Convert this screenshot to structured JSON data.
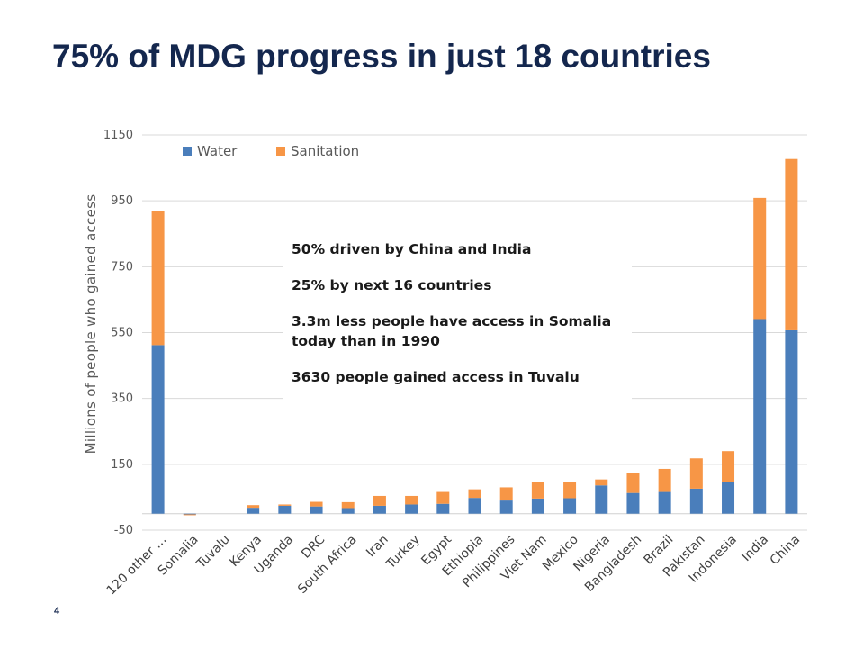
{
  "slide": {
    "title": "75% of MDG progress in just 18 countries",
    "page_number": "4"
  },
  "annotation": {
    "lines": [
      "50% driven by China and India",
      "25% by next 16 countries",
      "3.3m less people have access in Somalia today than in 1990",
      "3630 people gained access in Tuvalu"
    ]
  },
  "colors": {
    "water": "#4a7ebb",
    "sanitation": "#f79646",
    "grid": "#d9d9d9",
    "title": "#14274e"
  },
  "chart_data": {
    "type": "bar",
    "stacked": true,
    "ylabel": "Millions of people who gained access",
    "ylim": [
      -50,
      1150
    ],
    "yticks": [
      "-50",
      "150",
      "350",
      "550",
      "750",
      "950",
      "1150"
    ],
    "ytick_values": [
      -50,
      150,
      350,
      550,
      750,
      950,
      1150
    ],
    "grid": true,
    "legend_position": "top-left",
    "categories": [
      "120 other …",
      "Somalia",
      "Tuvalu",
      "Kenya",
      "Uganda",
      "DRC",
      "South Africa",
      "Iran",
      "Turkey",
      "Egypt",
      "Ethiopia",
      "Philippines",
      "Viet Nam",
      "Mexico",
      "Nigeria",
      "Bangladesh",
      "Brazil",
      "Pakistan",
      "Indonesia",
      "India",
      "China"
    ],
    "series": [
      {
        "name": "Water",
        "color": "#4a7ebb",
        "values": [
          512,
          -2,
          0,
          18,
          24,
          22,
          17,
          24,
          28,
          30,
          48,
          40,
          46,
          47,
          86,
          63,
          66,
          76,
          96,
          591,
          557
        ]
      },
      {
        "name": "Sanitation",
        "color": "#f79646",
        "values": [
          408,
          -2,
          0,
          8,
          4,
          14,
          18,
          30,
          26,
          36,
          26,
          40,
          50,
          50,
          18,
          60,
          70,
          92,
          94,
          368,
          520
        ]
      }
    ]
  }
}
